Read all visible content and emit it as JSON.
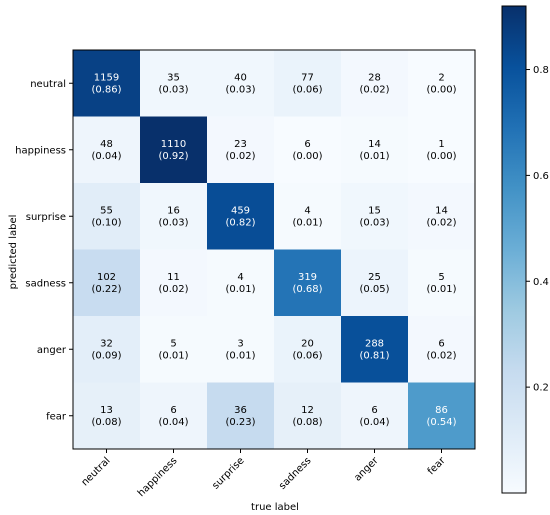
{
  "chart_data": {
    "type": "heatmap",
    "title": "",
    "xlabel": "true label",
    "ylabel": "predicted label",
    "x_categories": [
      "neutral",
      "happiness",
      "surprise",
      "sadness",
      "anger",
      "fear"
    ],
    "y_categories": [
      "neutral",
      "happiness",
      "surprise",
      "sadness",
      "anger",
      "fear"
    ],
    "counts": [
      [
        1159,
        35,
        40,
        77,
        28,
        2
      ],
      [
        48,
        1110,
        23,
        6,
        14,
        1
      ],
      [
        55,
        16,
        459,
        4,
        15,
        14
      ],
      [
        102,
        11,
        4,
        319,
        25,
        5
      ],
      [
        32,
        5,
        3,
        20,
        288,
        6
      ],
      [
        13,
        6,
        36,
        12,
        6,
        86
      ]
    ],
    "proportions": [
      [
        "(0.86)",
        "(0.03)",
        "(0.03)",
        "(0.06)",
        "(0.02)",
        "(0.00)"
      ],
      [
        "(0.04)",
        "(0.92)",
        "(0.02)",
        "(0.00)",
        "(0.01)",
        "(0.00)"
      ],
      [
        "(0.10)",
        "(0.03)",
        "(0.82)",
        "(0.01)",
        "(0.03)",
        "(0.02)"
      ],
      [
        "(0.22)",
        "(0.02)",
        "(0.01)",
        "(0.68)",
        "(0.05)",
        "(0.01)"
      ],
      [
        "(0.09)",
        "(0.01)",
        "(0.01)",
        "(0.06)",
        "(0.81)",
        "(0.02)"
      ],
      [
        "(0.08)",
        "(0.04)",
        "(0.23)",
        "(0.08)",
        "(0.04)",
        "(0.54)"
      ]
    ],
    "colorbar": {
      "ticks": [
        "0.2",
        "0.4",
        "0.6",
        "0.8"
      ],
      "tick_values": [
        0.2,
        0.4,
        0.6,
        0.8
      ],
      "range": [
        0.0,
        0.92
      ]
    },
    "colormap": "Blues",
    "colormap_stops": [
      "#f7fbff",
      "#deebf7",
      "#c6dbef",
      "#9ecae1",
      "#6baed6",
      "#4292c6",
      "#2171b5",
      "#08519c",
      "#08306b"
    ],
    "text_color_dark": "#000000",
    "text_color_light": "#ffffff"
  }
}
